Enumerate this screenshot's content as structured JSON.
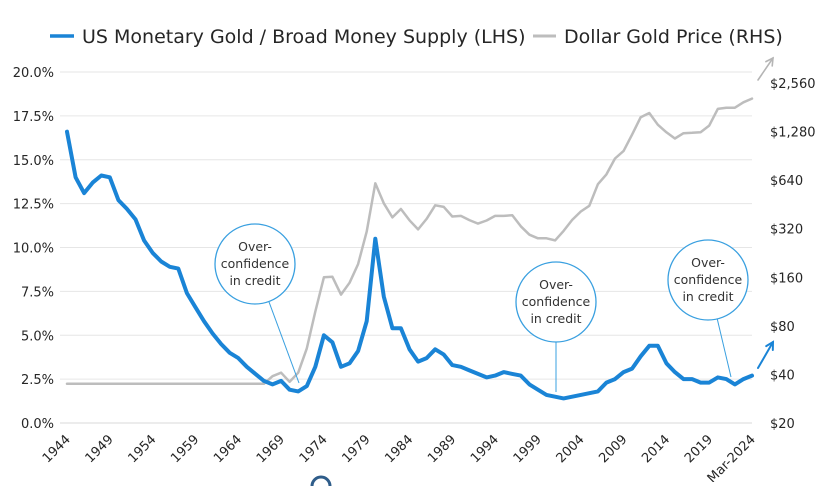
{
  "chart_data": {
    "type": "line",
    "title": "",
    "legend_position": "top",
    "legend": [
      {
        "name": "US Monetary Gold / Broad Money Supply (LHS)",
        "color": "#1a84d6"
      },
      {
        "name": "Dollar Gold Price (RHS)",
        "color": "#bdbdbd"
      }
    ],
    "x": [
      1944,
      1945,
      1946,
      1947,
      1948,
      1949,
      1950,
      1951,
      1952,
      1953,
      1954,
      1955,
      1956,
      1957,
      1958,
      1959,
      1960,
      1961,
      1962,
      1963,
      1964,
      1965,
      1966,
      1967,
      1968,
      1969,
      1970,
      1971,
      1972,
      1973,
      1974,
      1975,
      1976,
      1977,
      1978,
      1979,
      1980,
      1981,
      1982,
      1983,
      1984,
      1985,
      1986,
      1987,
      1988,
      1989,
      1990,
      1991,
      1992,
      1993,
      1994,
      1995,
      1996,
      1997,
      1998,
      1999,
      2000,
      2001,
      2002,
      2003,
      2004,
      2005,
      2006,
      2007,
      2008,
      2009,
      2010,
      2011,
      2012,
      2013,
      2014,
      2015,
      2016,
      2017,
      2018,
      2019,
      2020,
      2021,
      2022,
      2023,
      2024
    ],
    "x_tick_labels": [
      "1944",
      "1949",
      "1954",
      "1959",
      "1964",
      "1969",
      "1974",
      "1979",
      "1984",
      "1989",
      "1994",
      "1999",
      "2004",
      "2009",
      "2014",
      "2019",
      "Mar-2024"
    ],
    "x_tick_values": [
      1944,
      1949,
      1954,
      1959,
      1964,
      1969,
      1974,
      1979,
      1984,
      1989,
      1994,
      1999,
      2004,
      2009,
      2014,
      2019,
      2024
    ],
    "left_axis": {
      "range": [
        0,
        20
      ],
      "tick_values": [
        0,
        2.5,
        5,
        7.5,
        10,
        12.5,
        15,
        17.5,
        20
      ],
      "tick_labels": [
        "0.0%",
        "2.5%",
        "5.0%",
        "7.5%",
        "10.0%",
        "12.5%",
        "15.0%",
        "17.5%",
        "20.0%"
      ],
      "grid": true
    },
    "right_axis": {
      "scale": "log2",
      "range": [
        20,
        2560
      ],
      "tick_values": [
        20,
        40,
        80,
        160,
        320,
        640,
        1280,
        2560
      ],
      "tick_labels": [
        "$20",
        "$40",
        "$80",
        "$160",
        "$320",
        "$640",
        "$1,280",
        "$2,560"
      ]
    },
    "series": [
      {
        "name": "US Monetary Gold / Broad Money Supply (LHS)",
        "axis": "left",
        "color": "#1a84d6",
        "values": [
          16.6,
          14.0,
          13.1,
          13.7,
          14.1,
          14.0,
          12.7,
          12.2,
          11.6,
          10.4,
          9.7,
          9.2,
          8.9,
          8.8,
          7.4,
          6.6,
          5.8,
          5.1,
          4.5,
          4.0,
          3.7,
          3.2,
          2.8,
          2.4,
          2.2,
          2.4,
          1.9,
          1.8,
          2.1,
          3.2,
          5.0,
          4.6,
          3.2,
          3.4,
          4.1,
          5.8,
          10.5,
          7.2,
          5.4,
          5.4,
          4.2,
          3.5,
          3.7,
          4.2,
          3.9,
          3.3,
          3.2,
          3.0,
          2.8,
          2.6,
          2.7,
          2.9,
          2.8,
          2.7,
          2.2,
          1.9,
          1.6,
          1.5,
          1.4,
          1.5,
          1.6,
          1.7,
          1.8,
          2.3,
          2.5,
          2.9,
          3.1,
          3.8,
          4.4,
          4.4,
          3.4,
          2.9,
          2.5,
          2.5,
          2.3,
          2.3,
          2.6,
          2.5,
          2.2,
          2.5,
          2.7
        ]
      },
      {
        "name": "Dollar Gold Price (RHS)",
        "axis": "right",
        "color": "#bdbdbd",
        "values": [
          35,
          35,
          35,
          35,
          35,
          35,
          35,
          35,
          35,
          35,
          35,
          35,
          35,
          35,
          35,
          35,
          35,
          35,
          35,
          35,
          35,
          35,
          35,
          35,
          39,
          41,
          36,
          41,
          58,
          98,
          160,
          161,
          125,
          148,
          193,
          307,
          612,
          460,
          376,
          424,
          361,
          317,
          368,
          447,
          437,
          381,
          384,
          362,
          344,
          360,
          384,
          384,
          388,
          331,
          294,
          279,
          279,
          271,
          310,
          363,
          409,
          444,
          604,
          695,
          872,
          972,
          1225,
          1572,
          1669,
          1411,
          1266,
          1160,
          1251,
          1257,
          1268,
          1393,
          1770,
          1799,
          1800,
          1943,
          2050
        ]
      }
    ],
    "annotations": [
      {
        "text_lines": [
          "Over-",
          "confidence",
          "in credit"
        ],
        "points_to_year": 1971
      },
      {
        "text_lines": [
          "Over-",
          "confidence",
          "in credit"
        ],
        "points_to_year": 2001
      },
      {
        "text_lines": [
          "Over-",
          "confidence",
          "in credit"
        ],
        "points_to_year": 2022
      }
    ],
    "trend_arrows": [
      {
        "series": "Dollar Gold Price (RHS)",
        "direction": "up"
      },
      {
        "series": "US Monetary Gold / Broad Money Supply (LHS)",
        "direction": "up"
      }
    ]
  }
}
